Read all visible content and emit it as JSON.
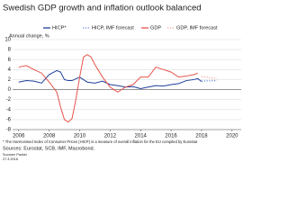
{
  "chart_data": {
    "type": "line",
    "title": "Swedish GDP growth and inflation outlook balanced",
    "y_label": "Annual change, %",
    "xlim": [
      2005.6,
      2020.6
    ],
    "xticks": [
      2006,
      2008,
      2010,
      2012,
      2014,
      2016,
      2018,
      2020
    ],
    "ylim": [
      -8,
      10
    ],
    "yticks": [
      -8,
      -6,
      -4,
      -2,
      0,
      2,
      4,
      6,
      8,
      10
    ],
    "grid": true,
    "series": [
      {
        "name": "HICP*",
        "color": "#1f3f9a",
        "dash": false,
        "x": [
          2006,
          2006.5,
          2007,
          2007.5,
          2008,
          2008.5,
          2008.75,
          2009,
          2009.25,
          2009.5,
          2010,
          2010.5,
          2011,
          2011.5,
          2012,
          2012.5,
          2013,
          2013.5,
          2014,
          2014.5,
          2015,
          2015.5,
          2016,
          2016.5,
          2017,
          2017.5,
          2017.75,
          2018
        ],
        "values": [
          1.5,
          1.8,
          1.7,
          1.3,
          3.0,
          3.8,
          3.5,
          2.0,
          1.8,
          1.8,
          2.5,
          1.5,
          1.3,
          1.7,
          1.0,
          0.8,
          0.5,
          0.6,
          0.2,
          0.5,
          0.8,
          0.7,
          1.0,
          1.2,
          1.8,
          2.0,
          2.2,
          1.6
        ]
      },
      {
        "name": "HICP, IMF forecast",
        "color": "#5f86d6",
        "dash": true,
        "x": [
          2018,
          2019
        ],
        "values": [
          1.7,
          1.8
        ]
      },
      {
        "name": "GDP",
        "color": "#e5534b",
        "dash": false,
        "x": [
          2006,
          2006.5,
          2007,
          2007.5,
          2008,
          2008.5,
          2008.75,
          2009,
          2009.25,
          2009.5,
          2009.75,
          2010,
          2010.25,
          2010.5,
          2010.75,
          2011,
          2011.5,
          2012,
          2012.5,
          2013,
          2013.5,
          2014,
          2014.5,
          2015,
          2015.5,
          2016,
          2016.5,
          2017,
          2017.5,
          2017.75
        ],
        "values": [
          4.5,
          4.8,
          4.0,
          3.3,
          1.5,
          -0.5,
          -3.5,
          -6.0,
          -6.5,
          -5.8,
          -2.0,
          2.5,
          6.5,
          7.0,
          6.5,
          5.0,
          2.5,
          0.5,
          -0.5,
          0.5,
          1.0,
          2.5,
          2.5,
          4.5,
          4.0,
          3.5,
          2.5,
          2.7,
          3.0,
          3.3
        ]
      },
      {
        "name": "GDP, IMF forecast",
        "color": "#f2a3a0",
        "dash": true,
        "x": [
          2018,
          2019
        ],
        "values": [
          2.6,
          2.2
        ]
      }
    ],
    "footnote": "* The Harmonised Index of Consumer Prices (HICP) is a measure of overall inflation for the EU compiled by Eurostat",
    "sources": "Sources: Eurostat, SCB, IMF, Macrobond.",
    "publisher": "Suomen Pankki",
    "date": "27.3.2018"
  }
}
